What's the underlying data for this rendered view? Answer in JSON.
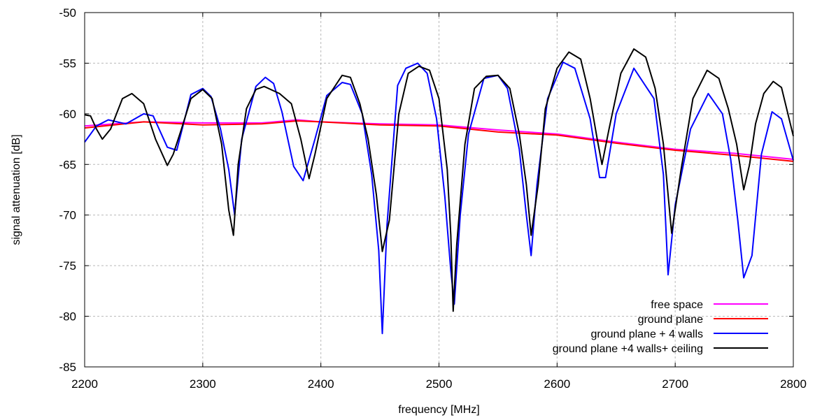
{
  "chart_data": {
    "type": "line",
    "title": "",
    "xlabel": "frequency [MHz]",
    "ylabel": "signal attenuation [dB]",
    "xlim": [
      2200,
      2800
    ],
    "ylim": [
      -85,
      -50
    ],
    "xticks": [
      2200,
      2300,
      2400,
      2500,
      2600,
      2700,
      2800
    ],
    "yticks": [
      -50,
      -55,
      -60,
      -65,
      -70,
      -75,
      -80,
      -85
    ],
    "grid": true,
    "legend_position": "bottom-right",
    "series": [
      {
        "name": "free space",
        "color": "#ff00ff",
        "x": [
          2200,
          2250,
          2300,
          2350,
          2380,
          2400,
          2450,
          2500,
          2550,
          2600,
          2650,
          2700,
          2750,
          2800
        ],
        "y": [
          -61.2,
          -60.8,
          -60.9,
          -60.9,
          -60.6,
          -60.8,
          -61.0,
          -61.1,
          -61.6,
          -62.0,
          -62.8,
          -63.5,
          -63.9,
          -64.5
        ]
      },
      {
        "name": "ground plane",
        "color": "#ff0000",
        "x": [
          2200,
          2250,
          2300,
          2350,
          2380,
          2400,
          2450,
          2500,
          2550,
          2600,
          2650,
          2700,
          2750,
          2800
        ],
        "y": [
          -61.4,
          -60.8,
          -61.1,
          -61.0,
          -60.7,
          -60.8,
          -61.1,
          -61.2,
          -61.8,
          -62.1,
          -62.9,
          -63.6,
          -64.1,
          -64.7
        ]
      },
      {
        "name": "ground plane + 4 walls",
        "color": "#0000ff",
        "x": [
          2200,
          2210,
          2220,
          2235,
          2250,
          2258,
          2270,
          2278,
          2290,
          2300,
          2307,
          2315,
          2322,
          2327,
          2333,
          2345,
          2353,
          2360,
          2367,
          2377,
          2385,
          2395,
          2405,
          2418,
          2425,
          2435,
          2443,
          2449,
          2452,
          2456,
          2465,
          2472,
          2482,
          2490,
          2498,
          2505,
          2510,
          2513,
          2518,
          2525,
          2538,
          2550,
          2558,
          2568,
          2574,
          2578,
          2583,
          2592,
          2605,
          2615,
          2628,
          2636,
          2641,
          2650,
          2665,
          2682,
          2690,
          2694,
          2700,
          2713,
          2728,
          2740,
          2747,
          2753,
          2758,
          2765,
          2773,
          2782,
          2790,
          2800
        ],
        "y": [
          -62.8,
          -61.2,
          -60.6,
          -61.0,
          -60.0,
          -60.2,
          -63.3,
          -63.6,
          -58.1,
          -57.5,
          -58.3,
          -61.5,
          -65.5,
          -70.0,
          -62.5,
          -57.3,
          -56.4,
          -57.0,
          -59.8,
          -65.2,
          -66.6,
          -62.5,
          -58.2,
          -56.9,
          -57.1,
          -60.0,
          -66.0,
          -73.5,
          -81.7,
          -71.0,
          -57.2,
          -55.5,
          -55.0,
          -56.0,
          -60.5,
          -68.2,
          -75.5,
          -78.8,
          -70.0,
          -62.0,
          -56.5,
          -56.2,
          -57.5,
          -63.5,
          -70.0,
          -74.0,
          -67.0,
          -58.5,
          -54.9,
          -55.5,
          -60.5,
          -66.3,
          -66.3,
          -60.0,
          -55.5,
          -58.5,
          -66.0,
          -75.9,
          -69.0,
          -61.5,
          -58.0,
          -60.0,
          -64.5,
          -70.5,
          -76.2,
          -74.0,
          -64.0,
          -59.8,
          -60.5,
          -64.6
        ]
      },
      {
        "name": "ground plane +4 walls+ ceiling",
        "color": "#000000",
        "x": [
          2200,
          2205,
          2210,
          2215,
          2222,
          2232,
          2240,
          2250,
          2260,
          2270,
          2275,
          2282,
          2290,
          2300,
          2308,
          2316,
          2322,
          2326,
          2330,
          2337,
          2345,
          2352,
          2365,
          2375,
          2383,
          2390,
          2395,
          2405,
          2418,
          2425,
          2433,
          2440,
          2447,
          2452,
          2458,
          2466,
          2474,
          2483,
          2492,
          2500,
          2507,
          2510,
          2512,
          2515,
          2522,
          2530,
          2540,
          2550,
          2560,
          2568,
          2574,
          2578,
          2584,
          2590,
          2600,
          2610,
          2620,
          2628,
          2634,
          2638,
          2644,
          2654,
          2665,
          2675,
          2683,
          2690,
          2697,
          2705,
          2715,
          2727,
          2737,
          2745,
          2752,
          2758,
          2763,
          2768,
          2775,
          2783,
          2790,
          2800
        ],
        "y": [
          -60.1,
          -60.2,
          -61.5,
          -62.5,
          -61.5,
          -58.5,
          -58.0,
          -59.0,
          -62.5,
          -65.1,
          -64.0,
          -61.5,
          -58.5,
          -57.6,
          -58.5,
          -63.0,
          -69.5,
          -72.0,
          -65.0,
          -59.5,
          -57.6,
          -57.3,
          -58.0,
          -59.0,
          -62.5,
          -66.4,
          -64.0,
          -58.5,
          -56.2,
          -56.4,
          -59.0,
          -62.5,
          -68.0,
          -73.6,
          -70.5,
          -60.0,
          -56.0,
          -55.3,
          -55.7,
          -58.5,
          -65.5,
          -72.0,
          -79.5,
          -73.0,
          -63.0,
          -57.5,
          -56.3,
          -56.2,
          -57.5,
          -62.0,
          -67.0,
          -72.0,
          -67.0,
          -59.5,
          -55.5,
          -53.9,
          -54.6,
          -58.5,
          -62.5,
          -65.0,
          -61.5,
          -56.0,
          -53.6,
          -54.4,
          -57.5,
          -63.0,
          -71.8,
          -65.5,
          -58.5,
          -55.7,
          -56.5,
          -59.5,
          -63.0,
          -67.5,
          -65.0,
          -61.0,
          -58.0,
          -56.8,
          -57.4,
          -62.2
        ]
      }
    ]
  }
}
